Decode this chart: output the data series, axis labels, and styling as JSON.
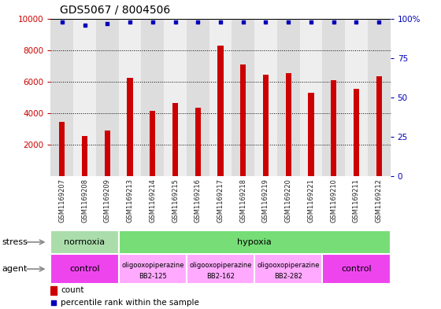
{
  "title": "GDS5067 / 8004506",
  "samples": [
    "GSM1169207",
    "GSM1169208",
    "GSM1169209",
    "GSM1169213",
    "GSM1169214",
    "GSM1169215",
    "GSM1169216",
    "GSM1169217",
    "GSM1169218",
    "GSM1169219",
    "GSM1169220",
    "GSM1169221",
    "GSM1169210",
    "GSM1169211",
    "GSM1169212"
  ],
  "counts": [
    3450,
    2550,
    2900,
    6250,
    4150,
    4650,
    4350,
    8300,
    7100,
    6450,
    6550,
    5300,
    6100,
    5550,
    6350
  ],
  "percentiles": [
    98,
    96,
    97,
    98,
    98,
    98,
    98,
    98,
    98,
    98,
    98,
    98,
    98,
    98,
    98
  ],
  "bar_color": "#cc0000",
  "dot_color": "#0000bb",
  "ylim_left": [
    0,
    10000
  ],
  "ylim_right": [
    0,
    100
  ],
  "yticks_left": [
    2000,
    4000,
    6000,
    8000,
    10000
  ],
  "yticks_right": [
    0,
    25,
    50,
    75,
    100
  ],
  "stress_groups": [
    {
      "label": "normoxia",
      "start": 0,
      "end": 3,
      "color": "#aaddaa"
    },
    {
      "label": "hypoxia",
      "start": 3,
      "end": 15,
      "color": "#77dd77"
    }
  ],
  "agent_groups": [
    {
      "line1": "control",
      "line2": "",
      "start": 0,
      "end": 3,
      "color": "#ee44ee"
    },
    {
      "line1": "oligooxopiperazine",
      "line2": "BB2-125",
      "start": 3,
      "end": 6,
      "color": "#ffaaff"
    },
    {
      "line1": "oligooxopiperazine",
      "line2": "BB2-162",
      "start": 6,
      "end": 9,
      "color": "#ffaaff"
    },
    {
      "line1": "oligooxopiperazine",
      "line2": "BB2-282",
      "start": 9,
      "end": 12,
      "color": "#ffaaff"
    },
    {
      "line1": "control",
      "line2": "",
      "start": 12,
      "end": 15,
      "color": "#ee44ee"
    }
  ],
  "legend_count_color": "#cc0000",
  "legend_pct_color": "#0000bb",
  "bg_color": "#ffffff",
  "tick_label_color_left": "#cc0000",
  "tick_label_color_right": "#0000bb",
  "plot_bg": "#ffffff",
  "col_bg_even": "#dddddd",
  "col_bg_odd": "#eeeeee"
}
